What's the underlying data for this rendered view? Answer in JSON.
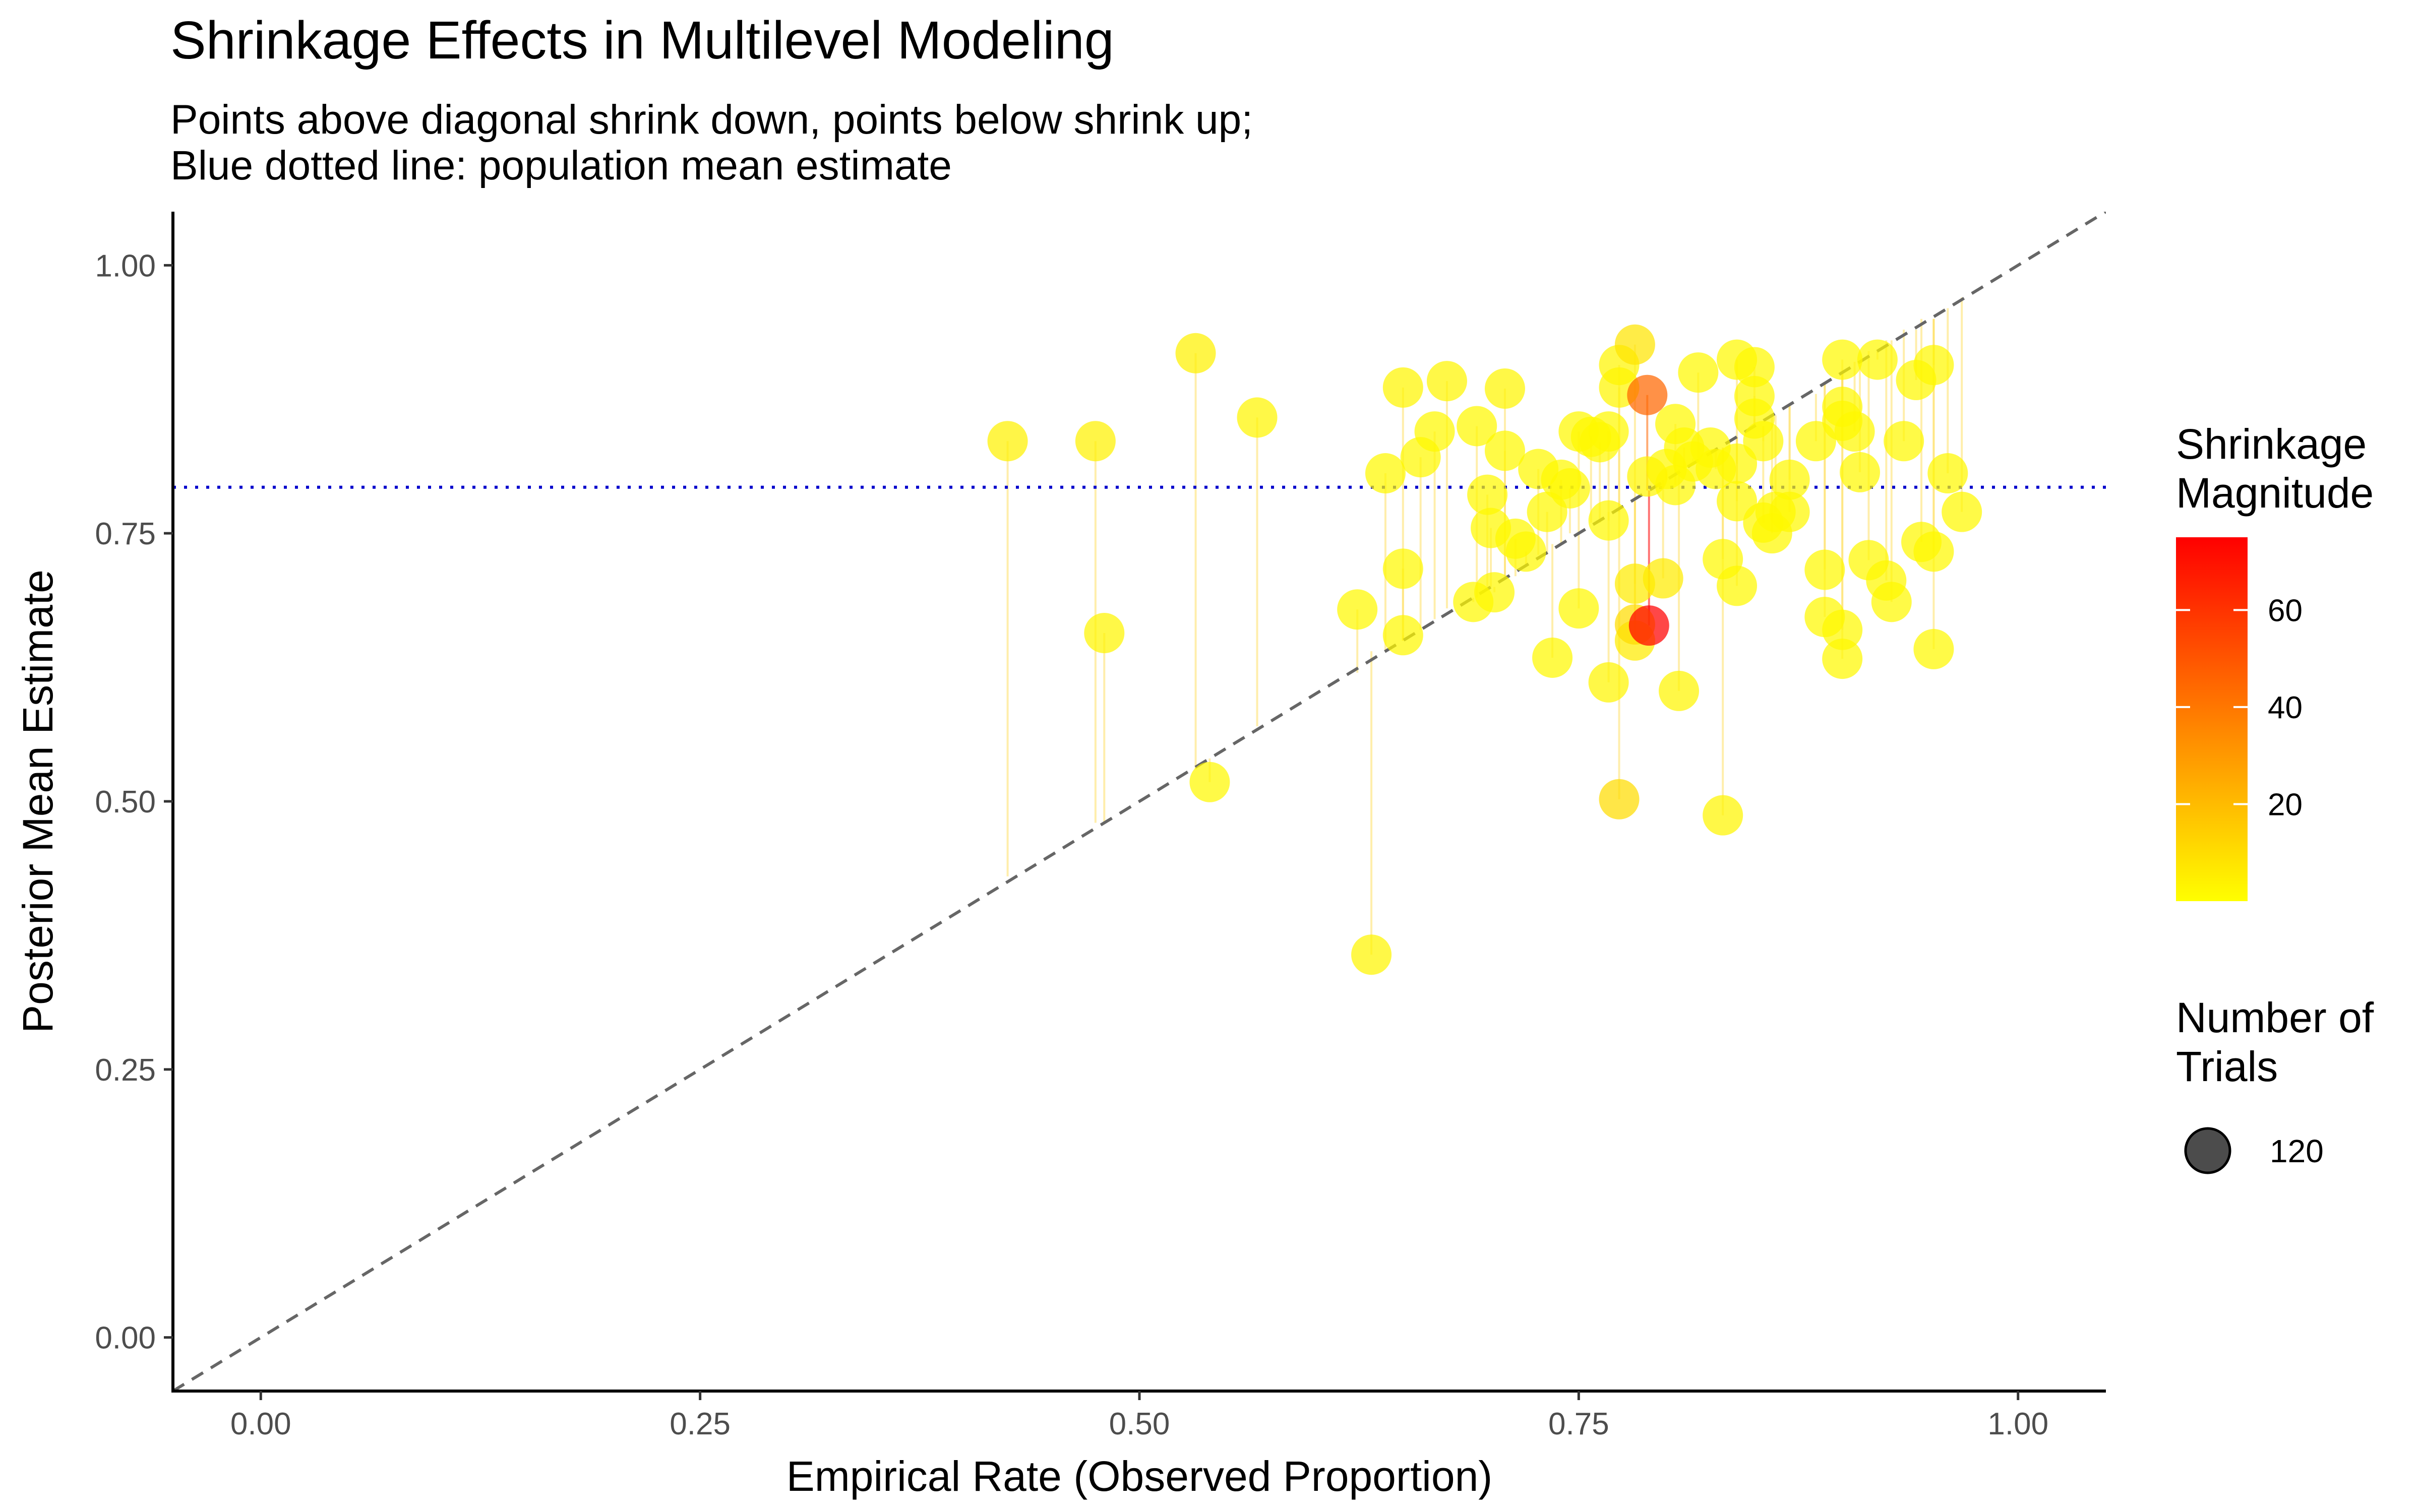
{
  "chart_data": {
    "type": "scatter",
    "title": "Shrinkage Effects in Multilevel Modeling",
    "subtitle_lines": [
      "Points above diagonal shrink down, points below shrink up;",
      "Blue dotted line: population mean estimate"
    ],
    "xlabel": "Empirical Rate (Observed Proportion)",
    "ylabel": "Posterior Mean Estimate",
    "xlim": [
      -0.05,
      1.05
    ],
    "ylim": [
      -0.05,
      1.05
    ],
    "x_ticks": [
      0.0,
      0.25,
      0.5,
      0.75,
      1.0
    ],
    "x_tick_labels": [
      "0.00",
      "0.25",
      "0.50",
      "0.75",
      "1.00"
    ],
    "y_ticks": [
      0.0,
      0.25,
      0.5,
      0.75,
      1.0
    ],
    "y_tick_labels": [
      "0.00",
      "0.25",
      "0.50",
      "0.75",
      "1.00"
    ],
    "grid": false,
    "reference_line": "y = x",
    "population_mean": 0.793,
    "colors": {
      "diagonal": "#666666",
      "population_mean": "#0000cc",
      "low": "#ffff00",
      "high": "#ff0000",
      "segment": "#ffe066"
    },
    "legend": {
      "placement": "right",
      "color": {
        "title_lines": [
          "Shrinkage",
          "Magnitude"
        ],
        "min": 0,
        "max": 75,
        "ticks": [
          20,
          40,
          60
        ],
        "tick_labels": [
          "20",
          "40",
          "60"
        ]
      },
      "size": {
        "title_lines": [
          "Number of",
          "Trials"
        ],
        "label": "120"
      }
    },
    "points": [
      {
        "x": 0.425,
        "y": 0.836,
        "post": 0.43,
        "mag": 4
      },
      {
        "x": 0.475,
        "y": 0.836,
        "post": 0.48,
        "mag": 4
      },
      {
        "x": 0.48,
        "y": 0.657,
        "post": 0.48,
        "mag": 3
      },
      {
        "x": 0.532,
        "y": 0.918,
        "post": 0.53,
        "mag": 4
      },
      {
        "x": 0.54,
        "y": 0.518,
        "post": 0.54,
        "mag": 2
      },
      {
        "x": 0.567,
        "y": 0.858,
        "post": 0.57,
        "mag": 3
      },
      {
        "x": 0.624,
        "y": 0.679,
        "post": 0.62,
        "mag": 2
      },
      {
        "x": 0.632,
        "y": 0.357,
        "post": 0.64,
        "mag": 3
      },
      {
        "x": 0.64,
        "y": 0.806,
        "post": 0.64,
        "mag": 2
      },
      {
        "x": 0.65,
        "y": 0.886,
        "post": 0.65,
        "mag": 3
      },
      {
        "x": 0.65,
        "y": 0.717,
        "post": 0.65,
        "mag": 2
      },
      {
        "x": 0.65,
        "y": 0.655,
        "post": 0.65,
        "mag": 2
      },
      {
        "x": 0.66,
        "y": 0.821,
        "post": 0.66,
        "mag": 2
      },
      {
        "x": 0.668,
        "y": 0.845,
        "post": 0.67,
        "mag": 2
      },
      {
        "x": 0.675,
        "y": 0.892,
        "post": 0.68,
        "mag": 3
      },
      {
        "x": 0.69,
        "y": 0.686,
        "post": 0.69,
        "mag": 2
      },
      {
        "x": 0.692,
        "y": 0.85,
        "post": 0.69,
        "mag": 2
      },
      {
        "x": 0.698,
        "y": 0.786,
        "post": 0.7,
        "mag": 2
      },
      {
        "x": 0.7,
        "y": 0.755,
        "post": 0.7,
        "mag": 2
      },
      {
        "x": 0.702,
        "y": 0.695,
        "post": 0.7,
        "mag": 2
      },
      {
        "x": 0.708,
        "y": 0.885,
        "post": 0.71,
        "mag": 3
      },
      {
        "x": 0.708,
        "y": 0.827,
        "post": 0.71,
        "mag": 2
      },
      {
        "x": 0.714,
        "y": 0.745,
        "post": 0.71,
        "mag": 2
      },
      {
        "x": 0.72,
        "y": 0.733,
        "post": 0.72,
        "mag": 2
      },
      {
        "x": 0.727,
        "y": 0.81,
        "post": 0.73,
        "mag": 2
      },
      {
        "x": 0.732,
        "y": 0.77,
        "post": 0.73,
        "mag": 2
      },
      {
        "x": 0.735,
        "y": 0.634,
        "post": 0.74,
        "mag": 2
      },
      {
        "x": 0.74,
        "y": 0.8,
        "post": 0.74,
        "mag": 2
      },
      {
        "x": 0.745,
        "y": 0.792,
        "post": 0.75,
        "mag": 2
      },
      {
        "x": 0.75,
        "y": 0.845,
        "post": 0.75,
        "mag": 2
      },
      {
        "x": 0.75,
        "y": 0.68,
        "post": 0.75,
        "mag": 2
      },
      {
        "x": 0.757,
        "y": 0.84,
        "post": 0.76,
        "mag": 2
      },
      {
        "x": 0.762,
        "y": 0.835,
        "post": 0.76,
        "mag": 2
      },
      {
        "x": 0.767,
        "y": 0.845,
        "post": 0.77,
        "mag": 2
      },
      {
        "x": 0.767,
        "y": 0.762,
        "post": 0.77,
        "mag": 2
      },
      {
        "x": 0.767,
        "y": 0.611,
        "post": 0.77,
        "mag": 3
      },
      {
        "x": 0.773,
        "y": 0.907,
        "post": 0.77,
        "mag": 3
      },
      {
        "x": 0.773,
        "y": 0.886,
        "post": 0.77,
        "mag": 3
      },
      {
        "x": 0.773,
        "y": 0.502,
        "post": 0.78,
        "mag": 10
      },
      {
        "x": 0.782,
        "y": 0.926,
        "post": 0.78,
        "mag": 8
      },
      {
        "x": 0.782,
        "y": 0.703,
        "post": 0.78,
        "mag": 6
      },
      {
        "x": 0.782,
        "y": 0.665,
        "post": 0.78,
        "mag": 10
      },
      {
        "x": 0.782,
        "y": 0.65,
        "post": 0.78,
        "mag": 6
      },
      {
        "x": 0.789,
        "y": 0.879,
        "post": 0.79,
        "mag": 45
      },
      {
        "x": 0.789,
        "y": 0.803,
        "post": 0.79,
        "mag": 3
      },
      {
        "x": 0.79,
        "y": 0.664,
        "post": 0.79,
        "mag": 75
      },
      {
        "x": 0.798,
        "y": 0.708,
        "post": 0.8,
        "mag": 6
      },
      {
        "x": 0.8,
        "y": 0.81,
        "post": 0.8,
        "mag": 2
      },
      {
        "x": 0.805,
        "y": 0.852,
        "post": 0.8,
        "mag": 2
      },
      {
        "x": 0.805,
        "y": 0.795,
        "post": 0.81,
        "mag": 2
      },
      {
        "x": 0.807,
        "y": 0.603,
        "post": 0.81,
        "mag": 3
      },
      {
        "x": 0.81,
        "y": 0.83,
        "post": 0.81,
        "mag": 2
      },
      {
        "x": 0.815,
        "y": 0.817,
        "post": 0.82,
        "mag": 2
      },
      {
        "x": 0.818,
        "y": 0.9,
        "post": 0.82,
        "mag": 2
      },
      {
        "x": 0.825,
        "y": 0.83,
        "post": 0.83,
        "mag": 2
      },
      {
        "x": 0.828,
        "y": 0.81,
        "post": 0.83,
        "mag": 2
      },
      {
        "x": 0.832,
        "y": 0.726,
        "post": 0.83,
        "mag": 2
      },
      {
        "x": 0.832,
        "y": 0.487,
        "post": 0.83,
        "mag": 3
      },
      {
        "x": 0.84,
        "y": 0.912,
        "post": 0.84,
        "mag": 2
      },
      {
        "x": 0.84,
        "y": 0.815,
        "post": 0.84,
        "mag": 2
      },
      {
        "x": 0.84,
        "y": 0.78,
        "post": 0.84,
        "mag": 2
      },
      {
        "x": 0.84,
        "y": 0.701,
        "post": 0.84,
        "mag": 2
      },
      {
        "x": 0.85,
        "y": 0.905,
        "post": 0.85,
        "mag": 2
      },
      {
        "x": 0.85,
        "y": 0.878,
        "post": 0.85,
        "mag": 2
      },
      {
        "x": 0.85,
        "y": 0.857,
        "post": 0.85,
        "mag": 2
      },
      {
        "x": 0.855,
        "y": 0.836,
        "post": 0.85,
        "mag": 2
      },
      {
        "x": 0.855,
        "y": 0.76,
        "post": 0.85,
        "mag": 2
      },
      {
        "x": 0.86,
        "y": 0.75,
        "post": 0.86,
        "mag": 2
      },
      {
        "x": 0.862,
        "y": 0.77,
        "post": 0.86,
        "mag": 2
      },
      {
        "x": 0.87,
        "y": 0.8,
        "post": 0.87,
        "mag": 2
      },
      {
        "x": 0.87,
        "y": 0.77,
        "post": 0.87,
        "mag": 2
      },
      {
        "x": 0.885,
        "y": 0.836,
        "post": 0.88,
        "mag": 2
      },
      {
        "x": 0.89,
        "y": 0.716,
        "post": 0.89,
        "mag": 2
      },
      {
        "x": 0.89,
        "y": 0.672,
        "post": 0.89,
        "mag": 2
      },
      {
        "x": 0.9,
        "y": 0.912,
        "post": 0.9,
        "mag": 2
      },
      {
        "x": 0.9,
        "y": 0.868,
        "post": 0.9,
        "mag": 2
      },
      {
        "x": 0.9,
        "y": 0.855,
        "post": 0.9,
        "mag": 2
      },
      {
        "x": 0.9,
        "y": 0.66,
        "post": 0.9,
        "mag": 2
      },
      {
        "x": 0.9,
        "y": 0.633,
        "post": 0.9,
        "mag": 2
      },
      {
        "x": 0.907,
        "y": 0.845,
        "post": 0.91,
        "mag": 2
      },
      {
        "x": 0.91,
        "y": 0.807,
        "post": 0.91,
        "mag": 2
      },
      {
        "x": 0.915,
        "y": 0.725,
        "post": 0.92,
        "mag": 2
      },
      {
        "x": 0.92,
        "y": 0.912,
        "post": 0.92,
        "mag": 2
      },
      {
        "x": 0.925,
        "y": 0.706,
        "post": 0.93,
        "mag": 2
      },
      {
        "x": 0.928,
        "y": 0.686,
        "post": 0.93,
        "mag": 2
      },
      {
        "x": 0.935,
        "y": 0.836,
        "post": 0.94,
        "mag": 2
      },
      {
        "x": 0.942,
        "y": 0.893,
        "post": 0.94,
        "mag": 2
      },
      {
        "x": 0.945,
        "y": 0.742,
        "post": 0.95,
        "mag": 2
      },
      {
        "x": 0.952,
        "y": 0.907,
        "post": 0.95,
        "mag": 2
      },
      {
        "x": 0.952,
        "y": 0.733,
        "post": 0.95,
        "mag": 2
      },
      {
        "x": 0.952,
        "y": 0.642,
        "post": 0.95,
        "mag": 2
      },
      {
        "x": 0.96,
        "y": 0.806,
        "post": 0.96,
        "mag": 2
      },
      {
        "x": 0.968,
        "y": 0.77,
        "post": 0.97,
        "mag": 2
      }
    ]
  }
}
